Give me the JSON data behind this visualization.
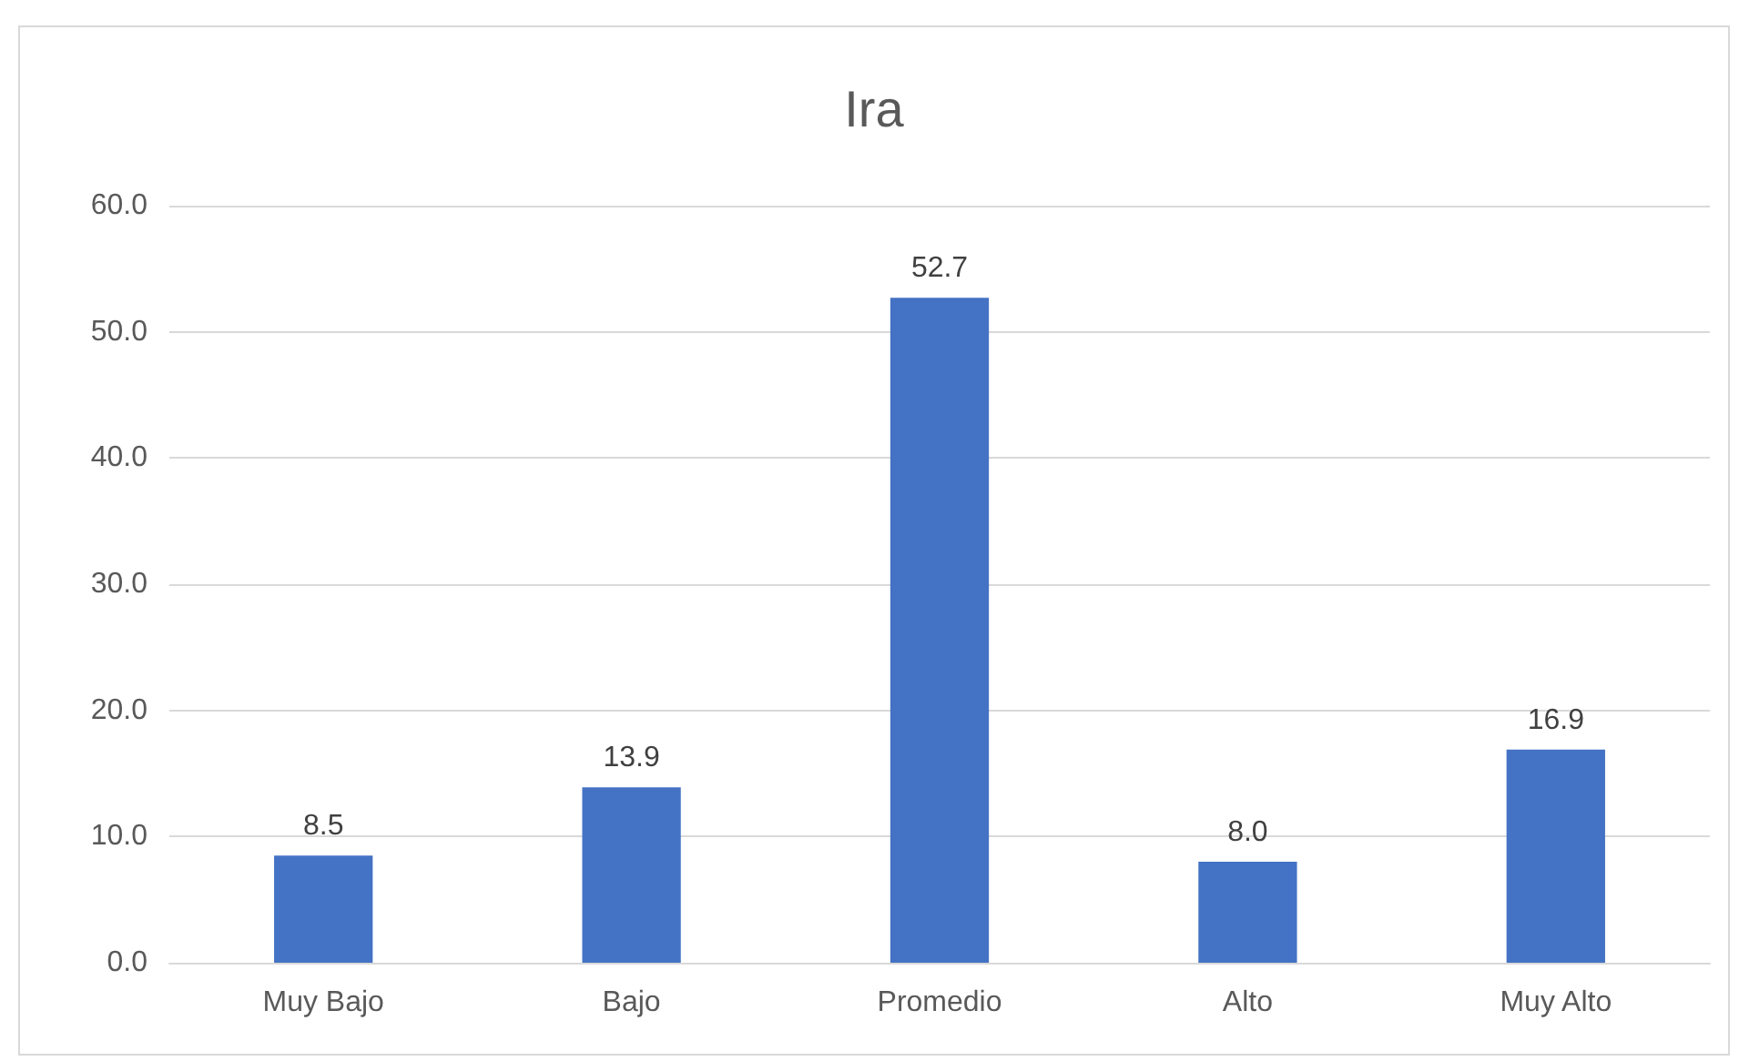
{
  "chart_data": {
    "type": "bar",
    "title": "Ira",
    "categories": [
      "Muy Bajo",
      "Bajo",
      "Promedio",
      "Alto",
      "Muy Alto"
    ],
    "values": [
      8.5,
      13.9,
      52.7,
      8.0,
      16.9
    ],
    "value_labels": [
      "8.5",
      "13.9",
      "52.7",
      "8.0",
      "16.9"
    ],
    "color": "#4472c4",
    "ylim": [
      0,
      60
    ],
    "yticks": [
      {
        "value": 0,
        "label": "0.0"
      },
      {
        "value": 10,
        "label": "10.0"
      },
      {
        "value": 20,
        "label": "20.0"
      },
      {
        "value": 30,
        "label": "30.0"
      },
      {
        "value": 40,
        "label": "40.0"
      },
      {
        "value": 50,
        "label": "50.0"
      },
      {
        "value": 60,
        "label": "60.0"
      }
    ],
    "grid": "y"
  }
}
